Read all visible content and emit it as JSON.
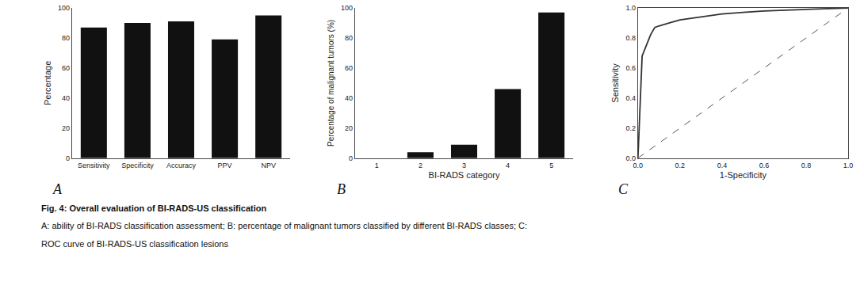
{
  "chart_data": [
    {
      "type": "bar",
      "categories": [
        "Sensitivity",
        "Specificity",
        "Accuracy",
        "PPV",
        "NPV"
      ],
      "values": [
        87,
        90,
        91,
        79,
        95
      ],
      "color": "#111111",
      "ylabel": "Percentage",
      "ylim": [
        0,
        100
      ],
      "yticks": [
        0,
        20,
        40,
        60,
        80,
        100
      ],
      "grid": false,
      "annotations": [
        "A"
      ]
    },
    {
      "type": "bar",
      "categories": [
        "1",
        "2",
        "3",
        "4",
        "5"
      ],
      "values": [
        0,
        4,
        9,
        46,
        97
      ],
      "color": "#111111",
      "xlabel": "BI-RADS category",
      "ylabel": "Percentage of malignant tumors (%)",
      "ylim": [
        0,
        100
      ],
      "yticks": [
        0,
        20,
        40,
        60,
        80,
        100
      ],
      "grid": false,
      "annotations": [
        "B"
      ]
    },
    {
      "type": "line",
      "series": [
        {
          "color": "#333333",
          "line_style": "solid",
          "x": [
            0.0,
            0.02,
            0.04,
            0.06,
            0.08,
            0.1,
            0.15,
            0.2,
            0.3,
            0.4,
            0.5,
            0.6,
            0.7,
            0.8,
            0.9,
            1.0
          ],
          "values": [
            0.0,
            0.68,
            0.75,
            0.82,
            0.87,
            0.88,
            0.9,
            0.92,
            0.94,
            0.96,
            0.97,
            0.98,
            0.985,
            0.99,
            0.995,
            1.0
          ]
        },
        {
          "color": "#555555",
          "line_style": "dashed",
          "x": [
            0.0,
            1.0
          ],
          "values": [
            0.0,
            1.0
          ]
        }
      ],
      "xlabel": "1-Specificity",
      "ylabel": "Sensitivity",
      "xlim": [
        0.0,
        1.0
      ],
      "ylim": [
        0.0,
        1.0
      ],
      "xticks": [
        {
          "value": 0.0,
          "label": "0.0"
        },
        {
          "value": 0.2,
          "label": "0.2"
        },
        {
          "value": 0.4,
          "label": "0.4"
        },
        {
          "value": 0.6,
          "label": "0.6"
        },
        {
          "value": 0.8,
          "label": "0.8"
        },
        {
          "value": 1.0,
          "label": "1.0"
        }
      ],
      "yticks": [
        {
          "value": 0.0,
          "label": "0.0"
        },
        {
          "value": 0.2,
          "label": "0.2"
        },
        {
          "value": 0.4,
          "label": "0.4"
        },
        {
          "value": 0.6,
          "label": "0.6"
        },
        {
          "value": 0.8,
          "label": "0.8"
        },
        {
          "value": 1.0,
          "label": "1.0"
        }
      ],
      "grid": false,
      "annotations": [
        "C"
      ]
    }
  ],
  "annotations": [
    "Fig. 4: Overall evaluation of BI-RADS-US classification",
    "A: ability of BI-RADS classification assessment; B: percentage of malignant tumors classified by different BI-RADS classes; C:",
    "ROC curve of BI-RADS-US classification lesions"
  ]
}
